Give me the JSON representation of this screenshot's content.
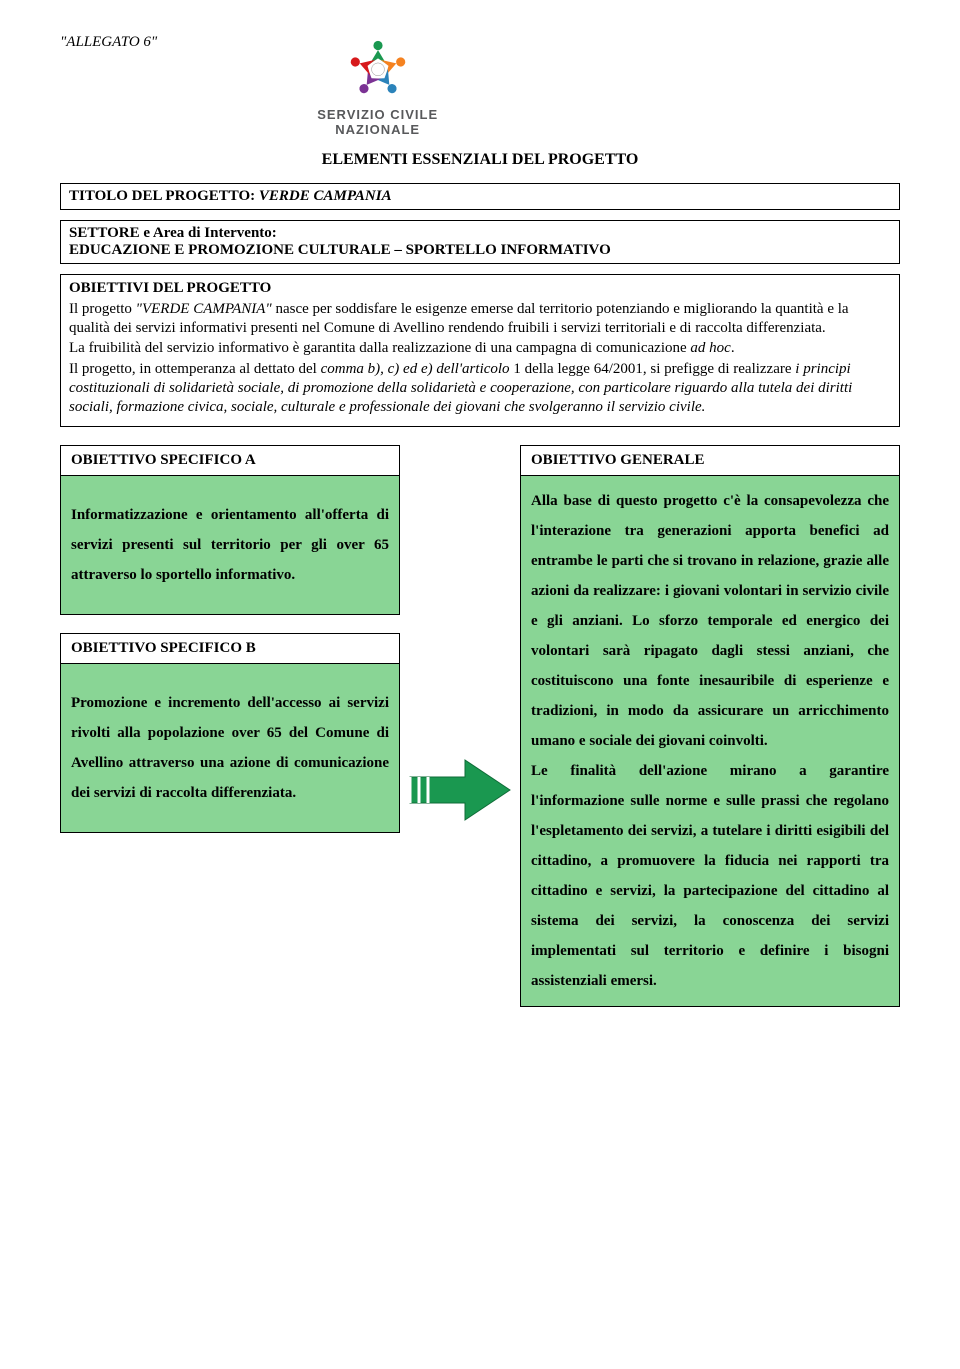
{
  "header": {
    "allegato": "\"ALLEGATO 6\"",
    "logo_line1": "SERVIZIO CIVILE",
    "logo_line2": "NAZIONALE"
  },
  "title": "ELEMENTI ESSENZIALI DEL PROGETTO",
  "box_titolo": {
    "label": "TITOLO DEL PROGETTO: ",
    "value": "VERDE CAMPANIA"
  },
  "box_settore": {
    "label": "SETTORE e Area di Intervento:",
    "value": "EDUCAZIONE E PROMOZIONE CULTURALE – SPORTELLO INFORMATIVO"
  },
  "obiettivi": {
    "heading": "OBIETTIVI DEL PROGETTO",
    "p1a": "Il progetto ",
    "p1b": "\"VERDE CAMPANIA\"",
    "p1c": " nasce per soddisfare le esigenze emerse dal territorio potenziando e migliorando la quantità e la qualità dei servizi informativi presenti nel Comune di Avellino rendendo fruibili i servizi territoriali e di raccolta differenziata.",
    "p2a": "La fruibilità del servizio informativo è garantita dalla realizzazione di una campagna di comunicazione ",
    "p2b": "ad hoc",
    "p2c": ".",
    "p3a": "Il progetto, in ottemperanza al dettato del ",
    "p3b": "comma b), c) ed e) dell'articolo",
    "p3c": " 1 della legge 64/2001, si prefigge di realizzare ",
    "p3d": "i principi costituzionali di solidarietà sociale, di promozione della solidarietà e cooperazione, con particolare riguardo alla tutela dei diritti sociali, formazione civica, sociale, culturale e professionale dei giovani che svolgeranno il servizio civile."
  },
  "left": {
    "a_header": "OBIETTIVO SPECIFICO A",
    "a_body": "Informatizzazione e orientamento all'offerta di servizi presenti sul territorio per gli over 65 attraverso lo sportello informativo.",
    "b_header": "OBIETTIVO SPECIFICO B",
    "b_body": "Promozione e incremento dell'accesso ai servizi rivolti alla popolazione over 65 del Comune di Avellino attraverso una azione di comunicazione dei servizi di raccolta differenziata."
  },
  "right": {
    "header": "OBIETTIVO GENERALE",
    "body": "Alla base di questo progetto c'è la consapevolezza che l'interazione tra generazioni apporta benefici ad entrambe le parti che si trovano in relazione, grazie alle azioni da realizzare: i giovani volontari in servizio civile e gli anziani. Lo sforzo temporale ed energico dei volontari sarà ripagato dagli stessi anziani, che costituiscono una fonte inesauribile di esperienze e tradizioni, in modo da assicurare un arricchimento umano e sociale dei giovani coinvolti.\nLe finalità dell'azione mirano a garantire l'informazione sulle norme e sulle prassi che regolano l'espletamento dei servizi, a tutelare i diritti esigibili del cittadino, a promuovere la fiducia nei rapporti tra cittadino e servizi, la partecipazione del cittadino al sistema dei servizi, la conoscenza dei servizi implementati sul territorio e definire i bisogni assistenziali emersi."
  },
  "colors": {
    "green_fill": "#89d595",
    "arrow_fill": "#1a9850",
    "logo_red": "#d7191c",
    "logo_orange": "#f58220",
    "logo_blue": "#2b83ba",
    "logo_green": "#1a9850",
    "logo_purple": "#7b3294"
  }
}
